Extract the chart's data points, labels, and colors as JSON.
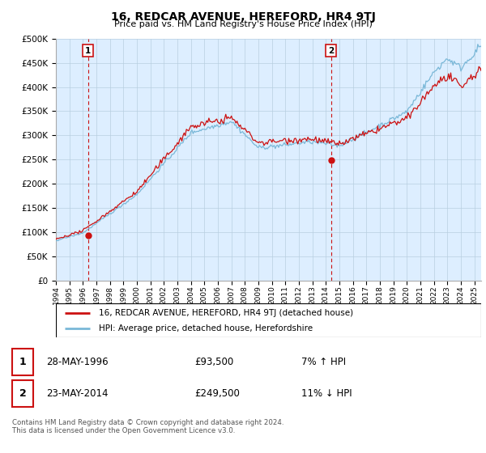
{
  "title": "16, REDCAR AVENUE, HEREFORD, HR4 9TJ",
  "subtitle": "Price paid vs. HM Land Registry's House Price Index (HPI)",
  "ylim": [
    0,
    500000
  ],
  "xlim_start": 1994.0,
  "xlim_end": 2025.5,
  "sale1_date": 1996.38,
  "sale1_price": 93500,
  "sale1_label": "1",
  "sale2_date": 2014.38,
  "sale2_price": 249500,
  "sale2_label": "2",
  "vline1_x": 1996.38,
  "vline2_x": 2014.38,
  "hpi_color": "#7ab8d8",
  "price_color": "#cc1111",
  "vline_color": "#cc1111",
  "grid_color": "#b8cfe0",
  "bg_color": "#ffffff",
  "plot_bg_color": "#ddeeff",
  "legend_label1": "16, REDCAR AVENUE, HEREFORD, HR4 9TJ (detached house)",
  "legend_label2": "HPI: Average price, detached house, Herefordshire",
  "table_row1": [
    "1",
    "28-MAY-1996",
    "£93,500",
    "7% ↑ HPI"
  ],
  "table_row2": [
    "2",
    "23-MAY-2014",
    "£249,500",
    "11% ↓ HPI"
  ],
  "footnote": "Contains HM Land Registry data © Crown copyright and database right 2024.\nThis data is licensed under the Open Government Licence v3.0."
}
